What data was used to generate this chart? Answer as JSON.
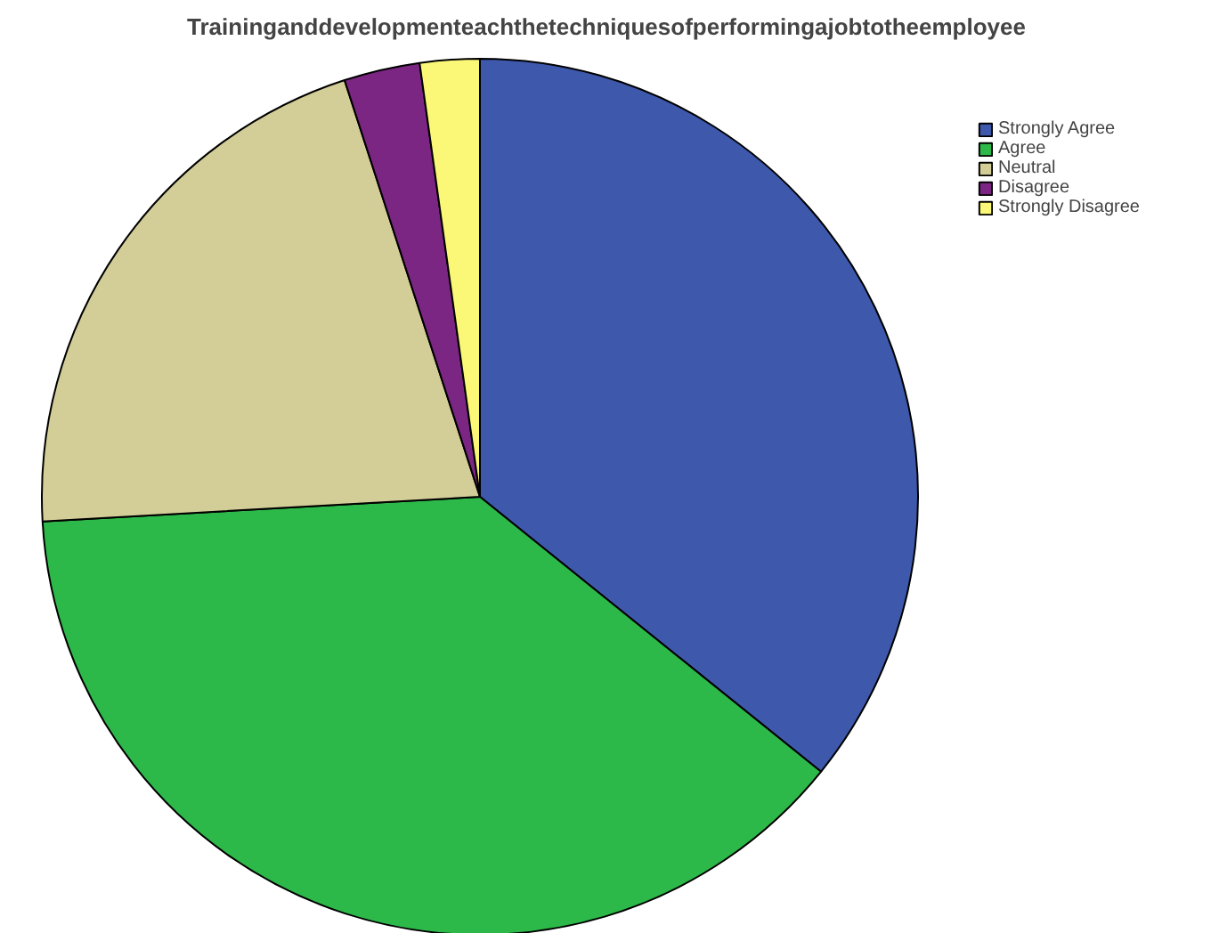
{
  "chart_data": {
    "type": "pie",
    "title": "Traininganddevelopmenteachthetechniquesofperformingajobtotheemployee",
    "categories": [
      "Strongly Agree",
      "Agree",
      "Neutral",
      "Disagree",
      "Strongly Disagree"
    ],
    "values": [
      35.8,
      38.3,
      20.9,
      2.8,
      2.2
    ],
    "colors": [
      "#3e58ac",
      "#2db84a",
      "#d3ce97",
      "#7a2682",
      "#fbf877"
    ],
    "legend": "top right"
  }
}
